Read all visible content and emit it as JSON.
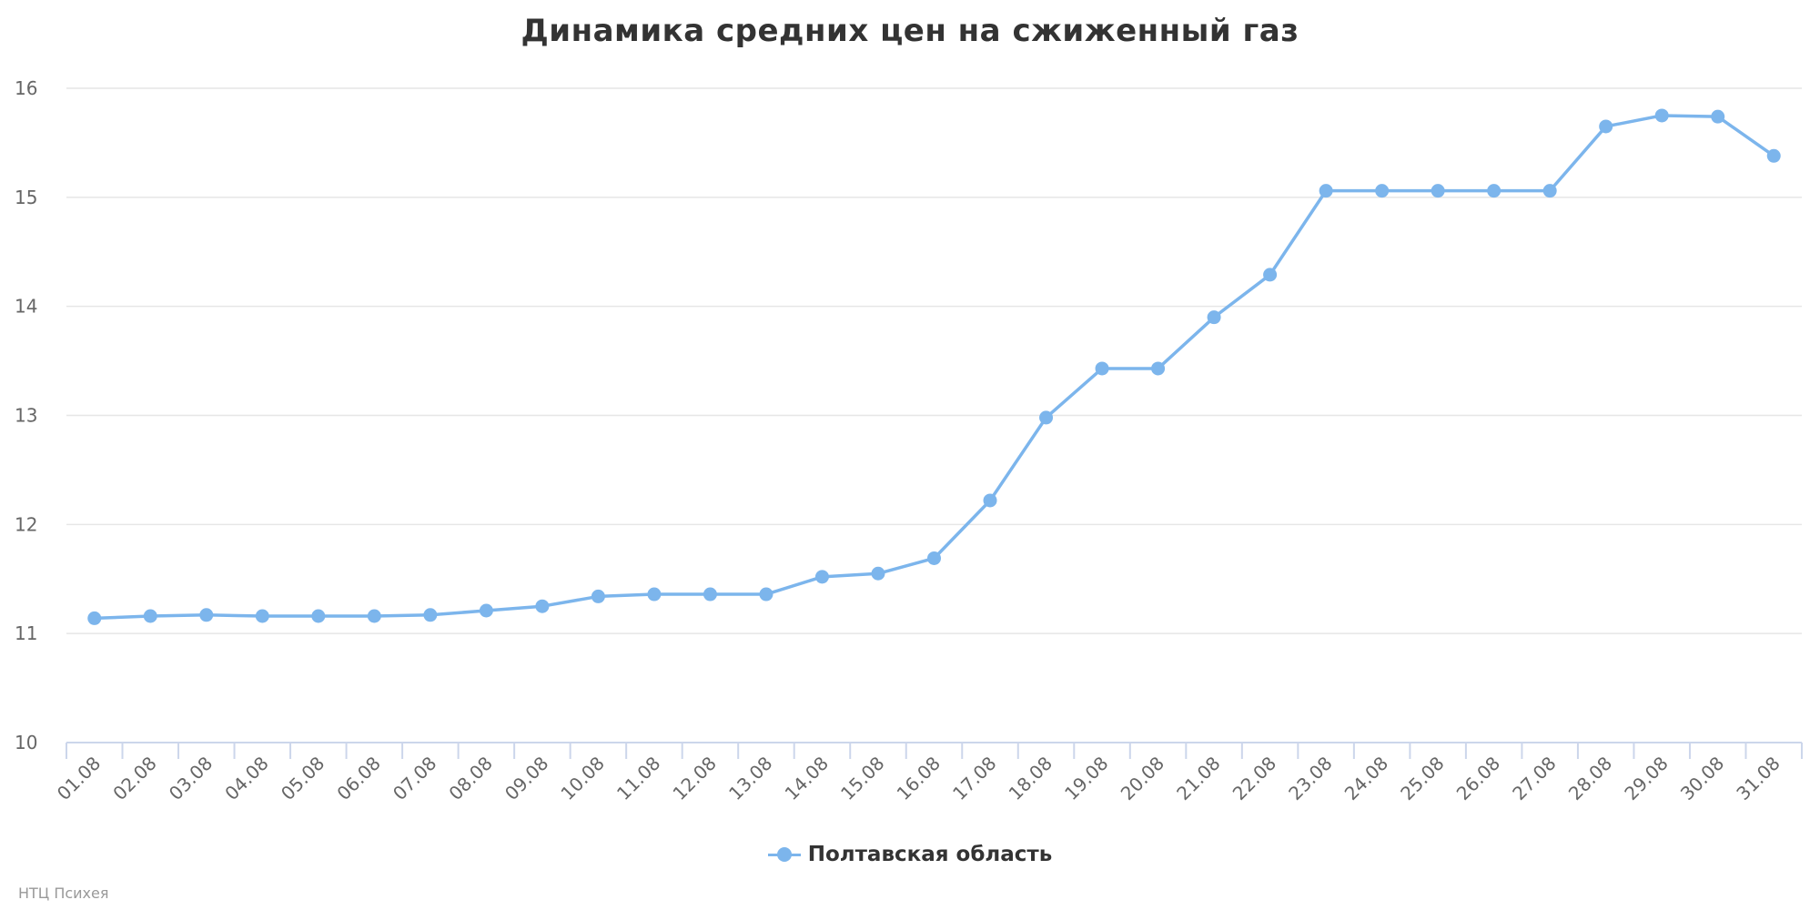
{
  "chart_data": {
    "type": "line",
    "title": "Динамика средних цен на сжиженный газ",
    "categories": [
      "01.08",
      "02.08",
      "03.08",
      "04.08",
      "05.08",
      "06.08",
      "07.08",
      "08.08",
      "09.08",
      "10.08",
      "11.08",
      "12.08",
      "13.08",
      "14.08",
      "15.08",
      "16.08",
      "17.08",
      "18.08",
      "19.08",
      "20.08",
      "21.08",
      "22.08",
      "23.08",
      "24.08",
      "25.08",
      "26.08",
      "27.08",
      "28.08",
      "29.08",
      "30.08",
      "31.08"
    ],
    "series": [
      {
        "name": "Полтавская область",
        "color": "#7cb5ec",
        "values": [
          11.14,
          11.16,
          11.17,
          11.16,
          11.16,
          11.16,
          11.17,
          11.21,
          11.25,
          11.34,
          11.36,
          11.36,
          11.36,
          11.52,
          11.55,
          11.69,
          12.22,
          12.98,
          13.43,
          13.43,
          13.9,
          14.29,
          15.06,
          15.06,
          15.06,
          15.06,
          15.06,
          15.65,
          15.75,
          15.74,
          15.38
        ]
      }
    ],
    "yticks": [
      10,
      11,
      12,
      13,
      14,
      15,
      16
    ],
    "ylim": [
      10,
      16
    ],
    "grid": true,
    "legend": "bottom-center"
  },
  "credits": "НТЦ Психея"
}
